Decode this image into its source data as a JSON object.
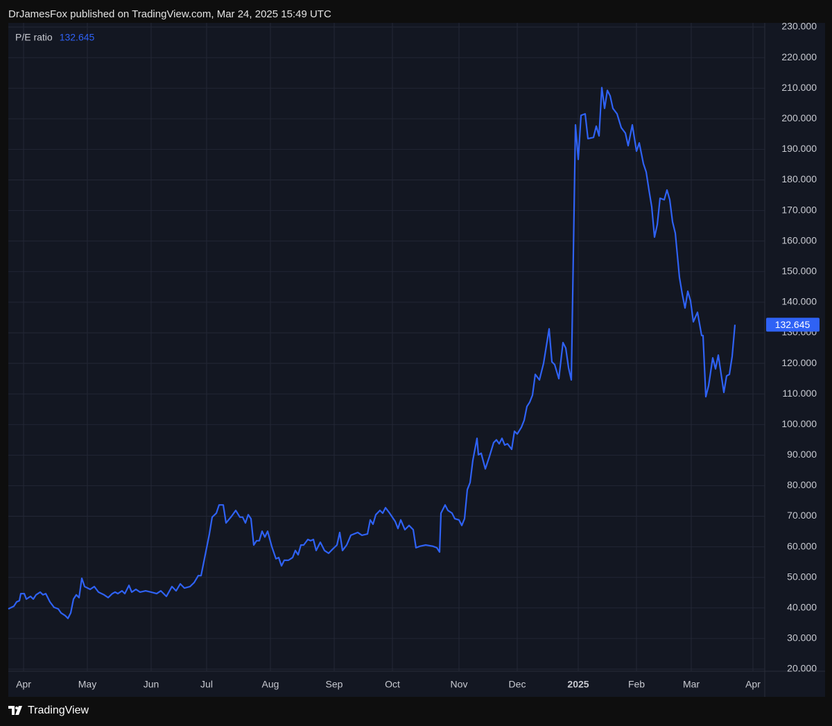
{
  "header": "DrJamesFox published on TradingView.com, Mar 24, 2025 15:49 UTC",
  "footer": "TradingView",
  "chart_data": {
    "type": "line",
    "series": [
      {
        "name": "P/E ratio",
        "color": "#2f62f5",
        "values": [
          39.7,
          40.6,
          42.0,
          42.4,
          44.7,
          44.7,
          42.9,
          43.8,
          42.9,
          44.3,
          45.2,
          44.3,
          44.7,
          42.0,
          40.2,
          39.7,
          38.4,
          37.5,
          36.6,
          38.4,
          42.9,
          44.3,
          43.4,
          49.7,
          47.0,
          46.1,
          47.0,
          45.2,
          44.3,
          43.4,
          44.7,
          45.2,
          44.7,
          45.6,
          44.7,
          47.4,
          45.2,
          46.1,
          45.2,
          45.6,
          45.2,
          44.7,
          45.6,
          43.8,
          47.0,
          45.6,
          47.9,
          46.5,
          47.0,
          48.3,
          50.6,
          50.6,
          57.4,
          64.2,
          69.7,
          71.0,
          73.7,
          73.7,
          67.8,
          70.0,
          71.9,
          69.7,
          69.7,
          67.8,
          70.5,
          69.2,
          60.6,
          62.0,
          62.0,
          65.1,
          63.2,
          65.1,
          60.1,
          56.1,
          56.5,
          53.8,
          55.6,
          55.6,
          56.5,
          58.8,
          57.4,
          60.6,
          60.6,
          62.4,
          62.0,
          62.4,
          58.8,
          61.5,
          58.8,
          57.9,
          59.3,
          60.6,
          64.7,
          58.8,
          60.6,
          63.8,
          64.7,
          63.8,
          64.2,
          68.8,
          67.4,
          70.5,
          71.9,
          71.0,
          72.8,
          71.0,
          68.3,
          66.0,
          68.8,
          65.6,
          67.0,
          65.6,
          59.7,
          60.2,
          60.6,
          60.2,
          59.7,
          58.3,
          71.0,
          73.7,
          71.9,
          71.0,
          69.2,
          68.8,
          67.0,
          69.2,
          78.7,
          81.0,
          88.3,
          95.5,
          90.1,
          90.6,
          85.5,
          89.6,
          94.1,
          95.0,
          93.7,
          95.5,
          93.3,
          93.7,
          91.9,
          97.8,
          96.9,
          99.1,
          101.4,
          105.9,
          107.3,
          109.6,
          116.4,
          114.6,
          120.0,
          131.3,
          120.5,
          119.6,
          115.0,
          126.8,
          125.0,
          118.6,
          114.6,
          198.0,
          186.7,
          201.1,
          201.6,
          193.5,
          193.9,
          197.6,
          194.4,
          210.2,
          203.4,
          209.3,
          207.5,
          203.4,
          201.6,
          197.1,
          195.3,
          191.2,
          198.0,
          189.4,
          192.1,
          185.3,
          182.6,
          176.7,
          171.2,
          161.3,
          165.4,
          174.0,
          173.5,
          176.7,
          173.5,
          166.3,
          162.6,
          148.1,
          142.7,
          138.1,
          143.6,
          140.4,
          133.6,
          136.7,
          129.1,
          129.1,
          109.1,
          112.7,
          121.8,
          118.2,
          122.7,
          110.5,
          115.9,
          116.4,
          122.3,
          132.645
        ]
      }
    ],
    "x": [
      0,
      8,
      12,
      16,
      18,
      23,
      26,
      32,
      36,
      40,
      46,
      50,
      54,
      60,
      66,
      72,
      76,
      82,
      86,
      90,
      94,
      98,
      102,
      106,
      110,
      118,
      124,
      130,
      138,
      144,
      150,
      154,
      158,
      164,
      168,
      174,
      178,
      184,
      190,
      198,
      206,
      214,
      220,
      228,
      236,
      242,
      248,
      254,
      262,
      268,
      274,
      278,
      284,
      290,
      294,
      300,
      304,
      310,
      314,
      322,
      328,
      334,
      338,
      342,
      346,
      350,
      354,
      358,
      362,
      366,
      370,
      374,
      380,
      386,
      390,
      394,
      398,
      404,
      410,
      414,
      418,
      422,
      426,
      432,
      436,
      440,
      444,
      450,
      456,
      462,
      468,
      474,
      478,
      482,
      488,
      494,
      504,
      510,
      518,
      522,
      526,
      530,
      536,
      540,
      544,
      550,
      558,
      562,
      566,
      572,
      578,
      584,
      588,
      594,
      602,
      612,
      618,
      622,
      624,
      630,
      634,
      640,
      644,
      650,
      654,
      658,
      662,
      666,
      670,
      676,
      678,
      682,
      688,
      694,
      700,
      704,
      708,
      712,
      716,
      720,
      726,
      730,
      734,
      740,
      744,
      748,
      752,
      756,
      760,
      766,
      772,
      780,
      784,
      788,
      794,
      800,
      804,
      808,
      812,
      818,
      822,
      826,
      832,
      836,
      844,
      848,
      852,
      856,
      860,
      864,
      868,
      872,
      878,
      884,
      890,
      894,
      900,
      906,
      910,
      916,
      920,
      924,
      928,
      932,
      936,
      940,
      946,
      950,
      954,
      958,
      962,
      968,
      972,
      976,
      980,
      984,
      988,
      994,
      1000,
      1002,
      1006,
      1010,
      1016,
      1020,
      1024,
      1032,
      1036,
      1040,
      1044,
      1048
    ],
    "xlim": [
      0,
      1091
    ],
    "xticks": [
      {
        "value": 22,
        "label": "Apr"
      },
      {
        "value": 114,
        "label": "May"
      },
      {
        "value": 206,
        "label": "Jun"
      },
      {
        "value": 286,
        "label": "Jul"
      },
      {
        "value": 378,
        "label": "Aug"
      },
      {
        "value": 470,
        "label": "Sep"
      },
      {
        "value": 554,
        "label": "Oct"
      },
      {
        "value": 650,
        "label": "Nov"
      },
      {
        "value": 734,
        "label": "Dec"
      },
      {
        "value": 822,
        "label": "2025"
      },
      {
        "value": 906,
        "label": "Feb"
      },
      {
        "value": 985,
        "label": "Mar"
      },
      {
        "value": 1074,
        "label": "Apr"
      }
    ],
    "ylim": [
      20,
      230
    ],
    "yticks": [
      {
        "value": 20,
        "label": "20.000"
      },
      {
        "value": 30,
        "label": "30.000"
      },
      {
        "value": 40,
        "label": "40.000"
      },
      {
        "value": 50,
        "label": "50.000"
      },
      {
        "value": 60,
        "label": "60.000"
      },
      {
        "value": 70,
        "label": "70.000"
      },
      {
        "value": 80,
        "label": "80.000"
      },
      {
        "value": 90,
        "label": "90.000"
      },
      {
        "value": 100,
        "label": "100.000"
      },
      {
        "value": 110,
        "label": "110.000"
      },
      {
        "value": 120,
        "label": "120.000"
      },
      {
        "value": 130,
        "label": "130.000"
      },
      {
        "value": 140,
        "label": "140.000"
      },
      {
        "value": 150,
        "label": "150.000"
      },
      {
        "value": 160,
        "label": "160.000"
      },
      {
        "value": 170,
        "label": "170.000"
      },
      {
        "value": 180,
        "label": "180.000"
      },
      {
        "value": 190,
        "label": "190.000"
      },
      {
        "value": 200,
        "label": "200.000"
      },
      {
        "value": 210,
        "label": "210.000"
      },
      {
        "value": 220,
        "label": "220.000"
      },
      {
        "value": 230,
        "label": "230.000"
      }
    ],
    "grid": true
  }
}
